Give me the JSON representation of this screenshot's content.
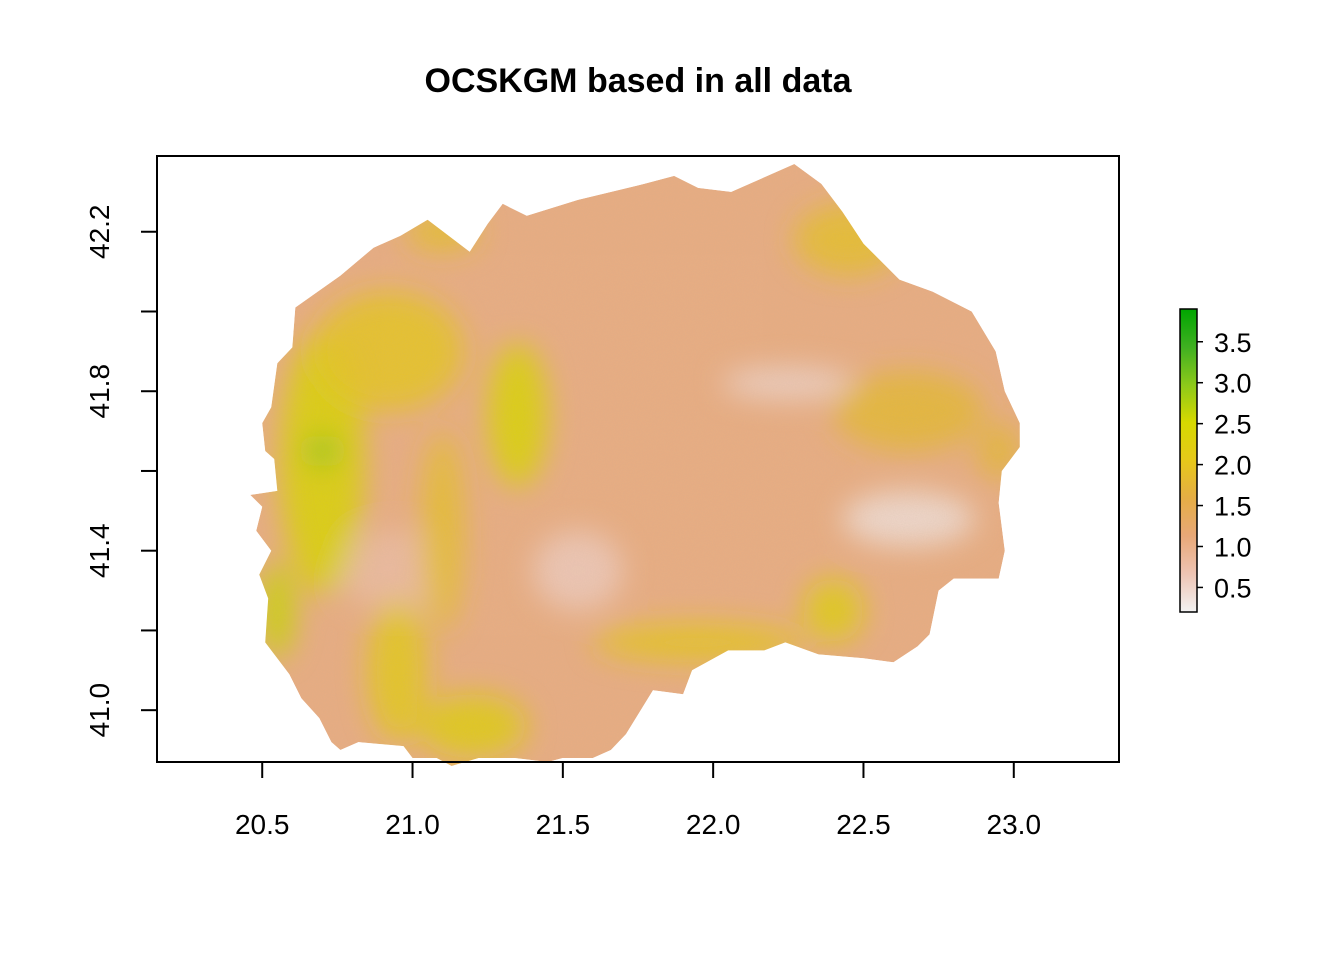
{
  "chart_data": {
    "type": "heatmap",
    "title": "OCSKGM based in all data",
    "xlabel": "",
    "ylabel": "",
    "xlim": [
      20.15,
      23.35
    ],
    "ylim": [
      40.87,
      42.39
    ],
    "x_ticks": [
      20.5,
      21.0,
      21.5,
      22.0,
      22.5,
      23.0
    ],
    "x_tick_labels": [
      "20.5",
      "21.0",
      "21.5",
      "22.0",
      "22.5",
      "23.0"
    ],
    "y_ticks": [
      41.0,
      41.2,
      41.4,
      41.6,
      41.8,
      42.0,
      42.2
    ],
    "y_tick_labels": [
      "41.0",
      "",
      "41.4",
      "",
      "41.8",
      "",
      "42.2"
    ],
    "legend": {
      "position": "right",
      "range": [
        0.2,
        3.9
      ],
      "ticks": [
        0.5,
        1.0,
        1.5,
        2.0,
        2.5,
        3.0,
        3.5
      ],
      "tick_labels": [
        "0.5",
        "1.0",
        "1.5",
        "2.0",
        "2.5",
        "3.0",
        "3.5"
      ],
      "colors": [
        "#f2f2f2",
        "#eec4b4",
        "#e8a878",
        "#e5ad45",
        "#e6c81a",
        "#d7d900",
        "#8cc91a",
        "#3fb021",
        "#00a600"
      ]
    },
    "raster": {
      "description_value_range": [
        0.2,
        3.9
      ],
      "region_boundary": [
        [
          20.5,
          41.51
        ],
        [
          20.46,
          41.54
        ],
        [
          20.55,
          41.55
        ],
        [
          20.54,
          41.63
        ],
        [
          20.51,
          41.65
        ],
        [
          20.5,
          41.72
        ],
        [
          20.53,
          41.76
        ],
        [
          20.55,
          41.87
        ],
        [
          20.6,
          41.91
        ],
        [
          20.61,
          42.01
        ],
        [
          20.76,
          42.09
        ],
        [
          20.87,
          42.16
        ],
        [
          20.96,
          42.19
        ],
        [
          21.05,
          42.23
        ],
        [
          21.12,
          42.19
        ],
        [
          21.19,
          42.15
        ],
        [
          21.25,
          42.22
        ],
        [
          21.3,
          42.27
        ],
        [
          21.38,
          42.24
        ],
        [
          21.55,
          42.28
        ],
        [
          21.77,
          42.32
        ],
        [
          21.87,
          42.34
        ],
        [
          21.95,
          42.31
        ],
        [
          22.06,
          42.3
        ],
        [
          22.27,
          42.37
        ],
        [
          22.36,
          42.32
        ],
        [
          22.43,
          42.25
        ],
        [
          22.5,
          42.17
        ],
        [
          22.62,
          42.08
        ],
        [
          22.73,
          42.05
        ],
        [
          22.86,
          42.0
        ],
        [
          22.94,
          41.9
        ],
        [
          22.97,
          41.8
        ],
        [
          23.02,
          41.72
        ],
        [
          23.02,
          41.66
        ],
        [
          22.96,
          41.6
        ],
        [
          22.95,
          41.52
        ],
        [
          22.97,
          41.4
        ],
        [
          22.95,
          41.33
        ],
        [
          22.8,
          41.33
        ],
        [
          22.75,
          41.3
        ],
        [
          22.72,
          41.19
        ],
        [
          22.68,
          41.16
        ],
        [
          22.6,
          41.12
        ],
        [
          22.5,
          41.13
        ],
        [
          22.35,
          41.14
        ],
        [
          22.24,
          41.17
        ],
        [
          22.17,
          41.15
        ],
        [
          22.05,
          41.15
        ],
        [
          21.93,
          41.1
        ],
        [
          21.9,
          41.04
        ],
        [
          21.8,
          41.05
        ],
        [
          21.71,
          40.94
        ],
        [
          21.66,
          40.9
        ],
        [
          21.6,
          40.88
        ],
        [
          21.5,
          40.88
        ],
        [
          21.45,
          40.87
        ],
        [
          21.34,
          40.88
        ],
        [
          21.22,
          40.88
        ],
        [
          21.13,
          40.86
        ],
        [
          21.08,
          40.88
        ],
        [
          21.0,
          40.88
        ],
        [
          20.97,
          40.91
        ],
        [
          20.82,
          40.92
        ],
        [
          20.76,
          40.9
        ],
        [
          20.73,
          40.92
        ],
        [
          20.69,
          40.98
        ],
        [
          20.63,
          41.03
        ],
        [
          20.59,
          41.09
        ],
        [
          20.51,
          41.17
        ],
        [
          20.52,
          41.28
        ],
        [
          20.49,
          41.34
        ],
        [
          20.53,
          41.4
        ],
        [
          20.48,
          41.45
        ]
      ],
      "high_value_zones": [
        {
          "cx": 20.7,
          "cy": 41.62,
          "rx": 0.14,
          "ry": 0.33,
          "value": 2.4
        },
        {
          "cx": 20.7,
          "cy": 41.65,
          "rx": 0.05,
          "ry": 0.04,
          "value": 3.0
        },
        {
          "cx": 20.92,
          "cy": 41.9,
          "rx": 0.25,
          "ry": 0.15,
          "value": 2.0
        },
        {
          "cx": 20.55,
          "cy": 41.25,
          "rx": 0.06,
          "ry": 0.12,
          "value": 2.6
        },
        {
          "cx": 20.95,
          "cy": 41.1,
          "rx": 0.1,
          "ry": 0.18,
          "value": 2.1
        },
        {
          "cx": 21.2,
          "cy": 40.96,
          "rx": 0.18,
          "ry": 0.08,
          "value": 2.2
        },
        {
          "cx": 21.35,
          "cy": 41.74,
          "rx": 0.1,
          "ry": 0.18,
          "value": 2.4
        },
        {
          "cx": 21.1,
          "cy": 41.45,
          "rx": 0.07,
          "ry": 0.25,
          "value": 1.9
        },
        {
          "cx": 21.95,
          "cy": 41.17,
          "rx": 0.35,
          "ry": 0.05,
          "value": 2.0
        },
        {
          "cx": 22.4,
          "cy": 41.25,
          "rx": 0.1,
          "ry": 0.08,
          "value": 2.2
        },
        {
          "cx": 22.45,
          "cy": 42.18,
          "rx": 0.18,
          "ry": 0.09,
          "value": 1.9
        },
        {
          "cx": 22.65,
          "cy": 41.75,
          "rx": 0.25,
          "ry": 0.1,
          "value": 1.8
        },
        {
          "cx": 22.95,
          "cy": 41.65,
          "rx": 0.07,
          "ry": 0.07,
          "value": 1.8
        },
        {
          "cx": 21.1,
          "cy": 42.2,
          "rx": 0.12,
          "ry": 0.05,
          "value": 1.9
        }
      ],
      "low_value_zones": [
        {
          "cx": 22.65,
          "cy": 41.48,
          "rx": 0.22,
          "ry": 0.07,
          "value": 0.4
        },
        {
          "cx": 22.25,
          "cy": 41.82,
          "rx": 0.22,
          "ry": 0.04,
          "value": 0.5
        },
        {
          "cx": 21.55,
          "cy": 41.35,
          "rx": 0.15,
          "ry": 0.1,
          "value": 0.6
        },
        {
          "cx": 20.95,
          "cy": 41.35,
          "rx": 0.2,
          "ry": 0.1,
          "value": 0.8
        }
      ]
    }
  }
}
